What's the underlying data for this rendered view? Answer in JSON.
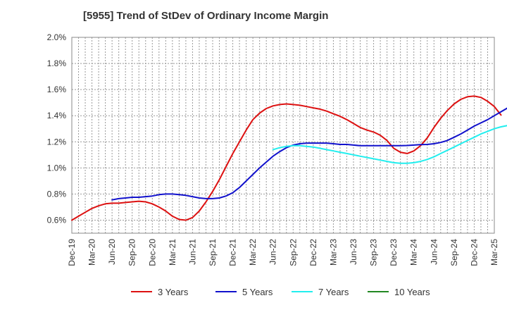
{
  "chart_data": {
    "type": "line",
    "title": "[5955]  Trend of StDev of Ordinary Income Margin",
    "xlabel": "",
    "ylabel": "",
    "ylim": [
      0.5,
      2.0
    ],
    "y_ticks": [
      "0.6%",
      "0.8%",
      "1.0%",
      "1.2%",
      "1.4%",
      "1.6%",
      "1.8%",
      "2.0%"
    ],
    "y_tick_values": [
      0.6,
      0.8,
      1.0,
      1.2,
      1.4,
      1.6,
      1.8,
      2.0
    ],
    "x_ticks": [
      "Dec-19",
      "Mar-20",
      "Jun-20",
      "Sep-20",
      "Dec-20",
      "Mar-21",
      "Jun-21",
      "Sep-21",
      "Dec-21",
      "Mar-22",
      "Jun-22",
      "Sep-22",
      "Dec-22",
      "Mar-23",
      "Jun-23",
      "Sep-23",
      "Dec-23",
      "Mar-24",
      "Jun-24",
      "Sep-24",
      "Dec-24",
      "Mar-25"
    ],
    "grid": true,
    "legend_position": "bottom",
    "series": [
      {
        "name": "3 Years",
        "color": "#dd1111",
        "start_month_index": 0,
        "values": [
          0.6,
          0.63,
          0.66,
          0.69,
          0.71,
          0.725,
          0.73,
          0.73,
          0.735,
          0.74,
          0.745,
          0.74,
          0.725,
          0.7,
          0.67,
          0.63,
          0.605,
          0.6,
          0.62,
          0.67,
          0.74,
          0.82,
          0.91,
          1.01,
          1.11,
          1.2,
          1.29,
          1.37,
          1.42,
          1.455,
          1.475,
          1.485,
          1.49,
          1.485,
          1.48,
          1.47,
          1.46,
          1.45,
          1.435,
          1.415,
          1.395,
          1.37,
          1.34,
          1.31,
          1.29,
          1.275,
          1.25,
          1.21,
          1.15,
          1.12,
          1.11,
          1.13,
          1.17,
          1.23,
          1.31,
          1.38,
          1.44,
          1.49,
          1.525,
          1.545,
          1.55,
          1.54,
          1.51,
          1.47,
          1.405
        ]
      },
      {
        "name": "5 Years",
        "color": "#1111cc",
        "start_month_index": 6,
        "values": [
          0.755,
          0.765,
          0.77,
          0.775,
          0.775,
          0.78,
          0.785,
          0.795,
          0.8,
          0.8,
          0.795,
          0.79,
          0.78,
          0.77,
          0.765,
          0.765,
          0.77,
          0.785,
          0.81,
          0.85,
          0.9,
          0.95,
          1.0,
          1.045,
          1.09,
          1.125,
          1.155,
          1.175,
          1.185,
          1.19,
          1.19,
          1.19,
          1.19,
          1.185,
          1.18,
          1.18,
          1.175,
          1.17,
          1.17,
          1.17,
          1.17,
          1.17,
          1.17,
          1.17,
          1.172,
          1.175,
          1.178,
          1.18,
          1.185,
          1.195,
          1.21,
          1.235,
          1.26,
          1.29,
          1.32,
          1.345,
          1.37,
          1.4,
          1.43,
          1.46,
          1.49,
          1.51,
          1.53
        ]
      },
      {
        "name": "7 Years",
        "color": "#22eeee",
        "start_month_index": 30,
        "values": [
          1.14,
          1.155,
          1.165,
          1.17,
          1.17,
          1.165,
          1.16,
          1.15,
          1.14,
          1.13,
          1.12,
          1.11,
          1.1,
          1.09,
          1.08,
          1.07,
          1.06,
          1.05,
          1.04,
          1.035,
          1.035,
          1.04,
          1.05,
          1.065,
          1.085,
          1.11,
          1.135,
          1.16,
          1.185,
          1.21,
          1.235,
          1.26,
          1.28,
          1.3,
          1.315,
          1.325
        ]
      },
      {
        "name": "10 Years",
        "color": "#228822",
        "start_month_index": 0,
        "values": []
      }
    ]
  }
}
